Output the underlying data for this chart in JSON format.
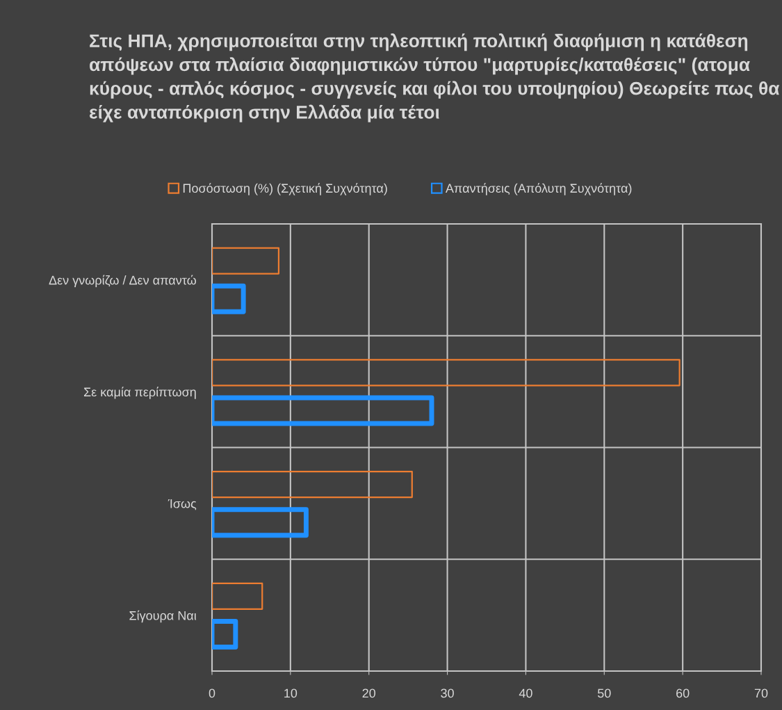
{
  "chart_data": {
    "type": "bar",
    "orientation": "horizontal",
    "title": "Στις ΗΠΑ, χρησιμοποιείται στην τηλεοπτική πολιτική διαφήμιση η κατάθεση απόψεων στα πλαίσια διαφημιστικών τύπου \"μαρτυρίες/καταθέσεις\" (ατομα κύρους - απλός κόσμος - συγγενείς και φίλοι του υποψηφίου) Θεωρείτε πως θα είχε ανταπόκριση στην Ελλάδα μία τέτοι",
    "categories": [
      "Δεν γνωρίζω / Δεν απαντώ",
      "Σε καμία περίπτωση",
      "Ίσως",
      "Σίγουρα Ναι"
    ],
    "series": [
      {
        "name": "Ποσόστωση (%) (Σχετική Συχνότητα)",
        "color": "#ed7d31",
        "values": [
          8.5,
          59.6,
          25.5,
          6.4
        ]
      },
      {
        "name": "Απαντήσεις (Απόλυτη Συχνότητα)",
        "color": "#2090ff",
        "values": [
          4,
          28,
          12,
          3
        ]
      }
    ],
    "xlim": [
      0,
      70
    ],
    "xticks": [
      0,
      10,
      20,
      30,
      40,
      50,
      60,
      70
    ],
    "grid": true,
    "legend": "top"
  }
}
